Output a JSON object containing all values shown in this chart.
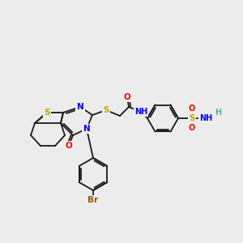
{
  "background_color": "#ececec",
  "atom_colors": {
    "S": "#c8a200",
    "N": "#0000ff",
    "O": "#ff0000",
    "Br": "#a05000",
    "C": "#1a1a1a",
    "H": "#5aabab"
  },
  "bond_color": "#1a1a1a",
  "bond_width": 1.3,
  "font_size_atom": 7.0
}
